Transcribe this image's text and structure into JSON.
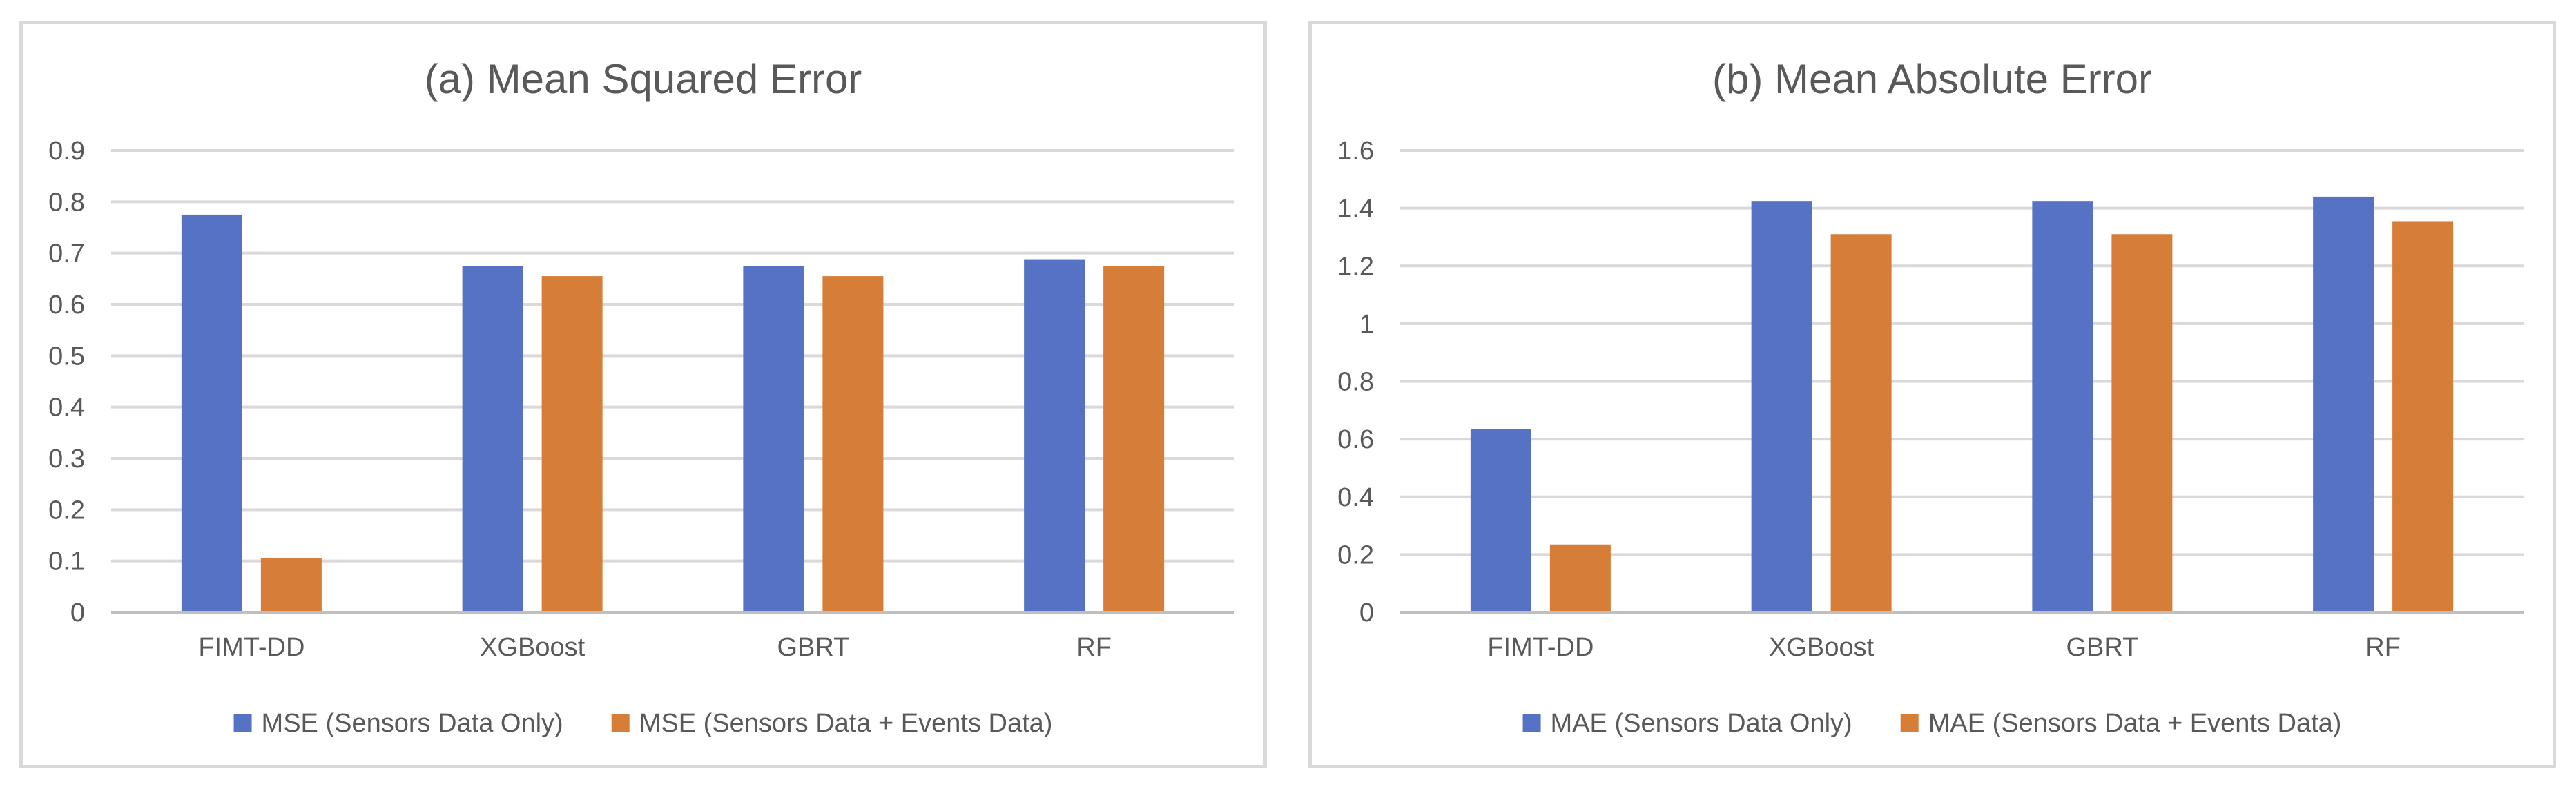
{
  "chart_data": [
    {
      "type": "bar",
      "title": "(a) Mean Squared Error",
      "categories": [
        "FIMT-DD",
        "XGBoost",
        "GBRT",
        "RF"
      ],
      "ylim": [
        0,
        0.9
      ],
      "yticks": [
        "0",
        "0.1",
        "0.2",
        "0.3",
        "0.4",
        "0.5",
        "0.6",
        "0.7",
        "0.8",
        "0.9"
      ],
      "ytick_values": [
        0,
        0.1,
        0.2,
        0.3,
        0.4,
        0.5,
        0.6,
        0.7,
        0.8,
        0.9
      ],
      "grid": true,
      "legend_position": "bottom",
      "series": [
        {
          "name": "MSE (Sensors Data Only)",
          "color": "#5572c4",
          "values": [
            0.775,
            0.675,
            0.675,
            0.688
          ]
        },
        {
          "name": "MSE (Sensors Data + Events Data)",
          "color": "#d67d38",
          "values": [
            0.105,
            0.655,
            0.655,
            0.675
          ]
        }
      ]
    },
    {
      "type": "bar",
      "title": "(b) Mean Absolute Error",
      "categories": [
        "FIMT-DD",
        "XGBoost",
        "GBRT",
        "RF"
      ],
      "ylim": [
        0,
        1.6
      ],
      "yticks": [
        "0",
        "0.2",
        "0.4",
        "0.6",
        "0.8",
        "1",
        "1.2",
        "1.4",
        "1.6"
      ],
      "ytick_values": [
        0,
        0.2,
        0.4,
        0.6,
        0.8,
        1,
        1.2,
        1.4,
        1.6
      ],
      "grid": true,
      "legend_position": "bottom",
      "series": [
        {
          "name": "MAE (Sensors Data Only)",
          "color": "#5572c4",
          "values": [
            0.635,
            1.425,
            1.425,
            1.44
          ]
        },
        {
          "name": "MAE (Sensors Data + Events Data)",
          "color": "#d67d38",
          "values": [
            0.235,
            1.31,
            1.31,
            1.355
          ]
        }
      ]
    }
  ]
}
